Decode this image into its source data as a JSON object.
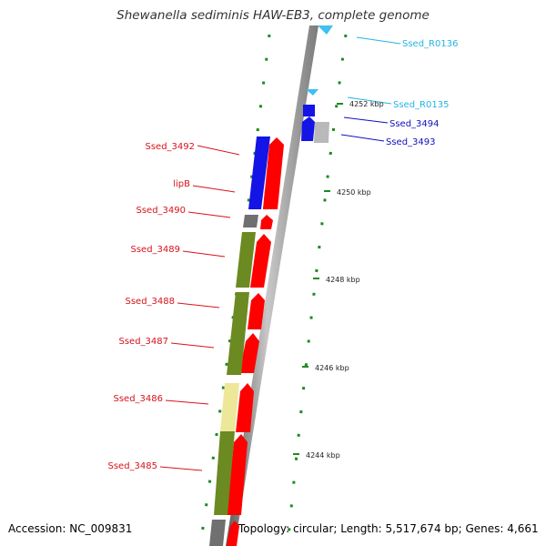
{
  "title": "Shewanella sediminis HAW-EB3, complete genome",
  "footer": {
    "accession": "Accession: NC_009831",
    "topology": "Topology: circular; Length: 5,517,674 bp; Genes: 4,661"
  },
  "colors": {
    "forward_strand": "#ff0000",
    "reverse_strand_blue": "#1414e6",
    "reverse_strand_olive": "#6b8a22",
    "reverse_strand_yellow": "#ede79a",
    "reverse_strand_gray": "#707070",
    "rna": "#3ec0f0",
    "gene_label_red": "#d8121b",
    "gene_label_blue": "#0f0fbe",
    "rna_label": "#23b4e6",
    "dotted_track": "#1f8a1f",
    "backbone": "#8c8c8c"
  },
  "scale_labels": [
    "4252 kbp",
    "4250 kbp",
    "4248 kbp",
    "4246 kbp",
    "4244 kbp"
  ],
  "genes": [
    {
      "label": "Ssed_R0136",
      "color": "rna_label",
      "strand": "rna"
    },
    {
      "label": "Ssed_R0135",
      "color": "rna_label",
      "strand": "rna"
    },
    {
      "label": "Ssed_3494",
      "color": "gene_label_blue",
      "strand": "reverse"
    },
    {
      "label": "Ssed_3493",
      "color": "gene_label_blue",
      "strand": "reverse"
    },
    {
      "label": "Ssed_3492",
      "color": "gene_label_red",
      "strand": "forward"
    },
    {
      "label": "lipB",
      "color": "gene_label_red",
      "strand": "forward"
    },
    {
      "label": "Ssed_3490",
      "color": "gene_label_red",
      "strand": "forward"
    },
    {
      "label": "Ssed_3489",
      "color": "gene_label_red",
      "strand": "forward"
    },
    {
      "label": "Ssed_3488",
      "color": "gene_label_red",
      "strand": "forward"
    },
    {
      "label": "Ssed_3487",
      "color": "gene_label_red",
      "strand": "forward"
    },
    {
      "label": "Ssed_3486",
      "color": "gene_label_red",
      "strand": "forward"
    },
    {
      "label": "Ssed_3485",
      "color": "gene_label_red",
      "strand": "forward"
    }
  ]
}
